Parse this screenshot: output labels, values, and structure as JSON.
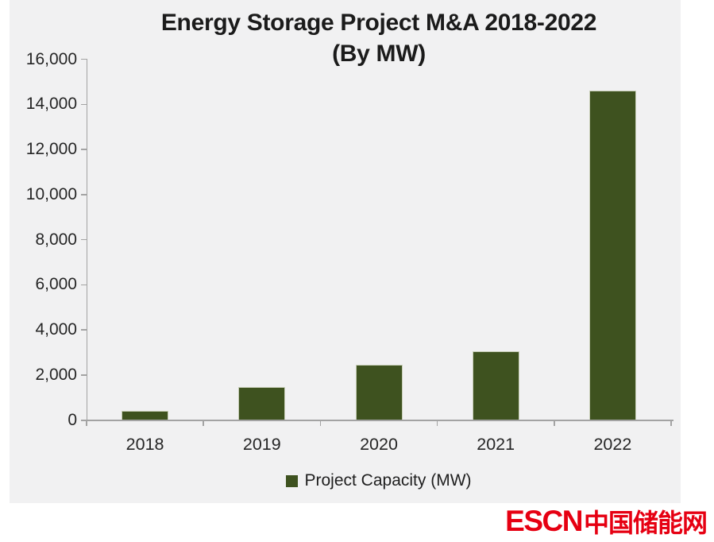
{
  "chart_data": {
    "type": "bar",
    "title_line1": "Energy Storage Project M&A 2018-2022",
    "title_line2": "(By MW)",
    "categories": [
      "2018",
      "2019",
      "2020",
      "2021",
      "2022"
    ],
    "series": [
      {
        "name": "Project Capacity (MW)",
        "values": [
          400,
          1450,
          2450,
          3050,
          14600
        ]
      }
    ],
    "xlabel": "",
    "ylabel": "",
    "ylim": [
      0,
      16000
    ],
    "ytick_values": [
      0,
      2000,
      4000,
      6000,
      8000,
      10000,
      12000,
      14000,
      16000
    ],
    "ytick_labels": [
      "0",
      "2,000",
      "4,000",
      "6,000",
      "8,000",
      "10,000",
      "12,000",
      "14,000",
      "16,000"
    ],
    "grid": false,
    "legend": {
      "label": "Project Capacity (MW)",
      "position": "bottom-center"
    },
    "bar_color": "#3E521F",
    "bar_border_color": "#C6CDB6",
    "axis_color": "#A3A3A3",
    "text_color": "#262626",
    "plot_background": "#F1F1F2"
  },
  "watermark": {
    "escn": "ESCN",
    "cn": "中国储能网",
    "color": "#E60012"
  }
}
